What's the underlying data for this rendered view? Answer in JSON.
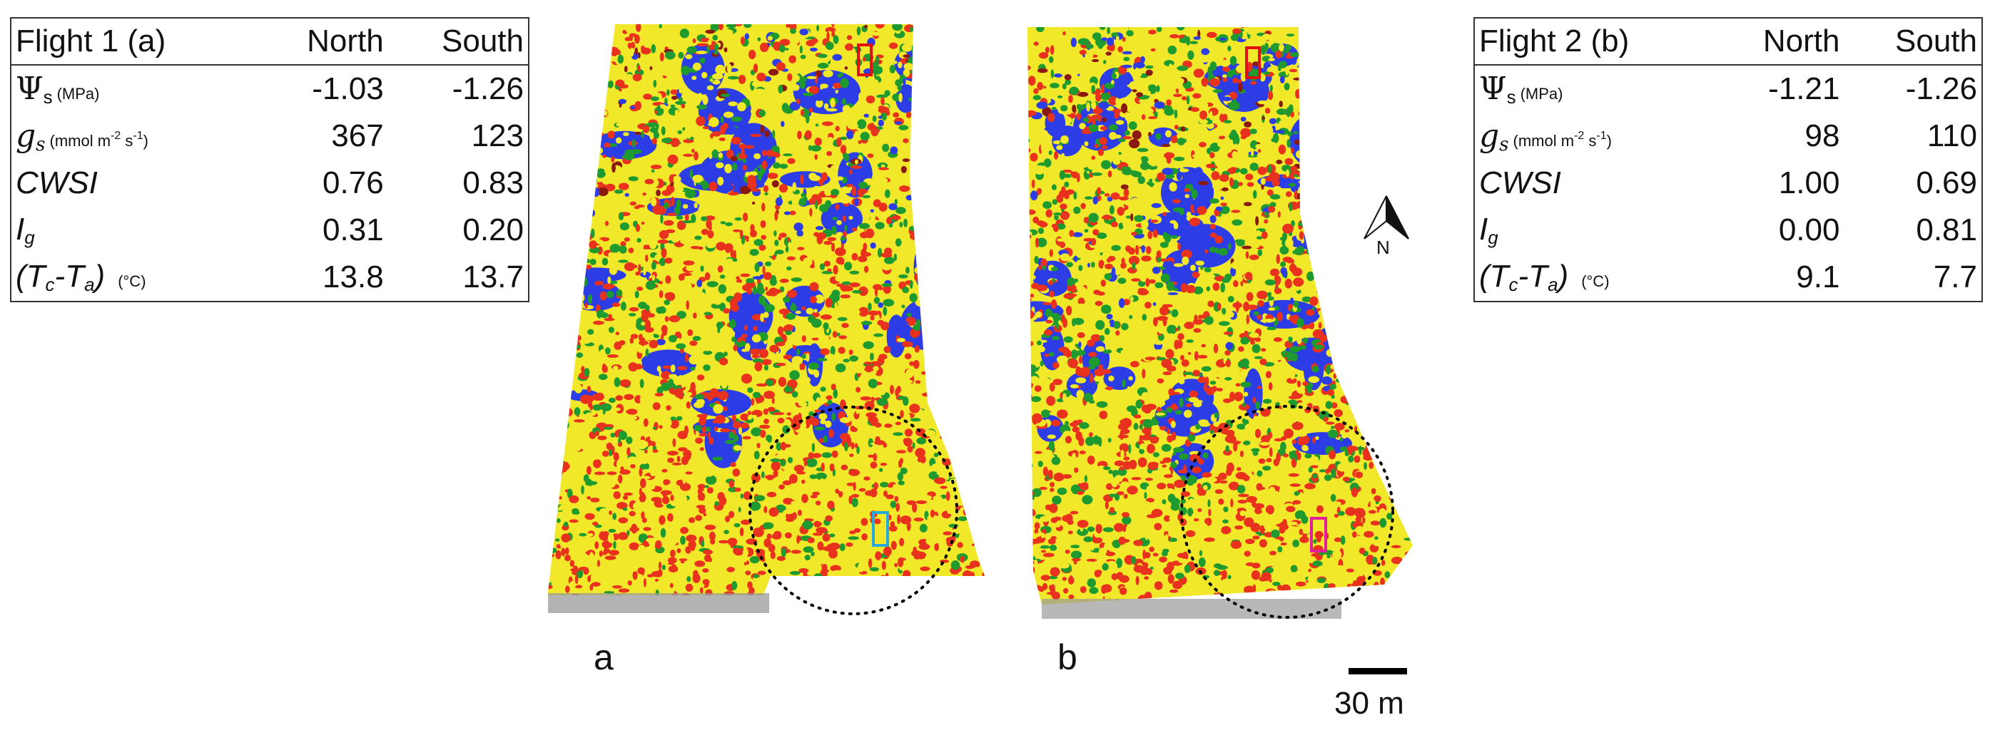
{
  "flight1": {
    "title": "Flight 1 (a)",
    "col_north": "North",
    "col_south": "South",
    "rows": [
      {
        "sym": "Ψ",
        "sub": "s",
        "unit": "(MPa)",
        "north": "-1.03",
        "south": "-1.26"
      },
      {
        "sym": "g",
        "sub": "s",
        "unit_pre": "(mmol m",
        "unit_sup1": "-2",
        "unit_mid": " s",
        "unit_sup2": "-1",
        "unit_post": ")",
        "north": "367",
        "south": "123"
      },
      {
        "sym": "CWSI",
        "north": "0.76",
        "south": "0.83"
      },
      {
        "sym": "I",
        "sub": "g",
        "north": "0.31",
        "south": "0.20"
      },
      {
        "sym_pre": "(T",
        "sub_c": "c",
        "sym_mid": "-T",
        "sub_a": "a",
        "sym_post": ")",
        "unit": "(°C)",
        "north": "13.8",
        "south": "13.7"
      }
    ]
  },
  "flight2": {
    "title": "Flight 2 (b)",
    "col_north": "North",
    "col_south": "South",
    "rows": [
      {
        "sym": "Ψ",
        "sub": "s",
        "unit": "(MPa)",
        "north": "-1.21",
        "south": "-1.26"
      },
      {
        "sym": "g",
        "sub": "s",
        "unit_pre": "(mmol m",
        "unit_sup1": "-2",
        "unit_mid": " s",
        "unit_sup2": "-1",
        "unit_post": ")",
        "north": "98",
        "south": "110"
      },
      {
        "sym": "CWSI",
        "north": "1.00",
        "south": "0.69"
      },
      {
        "sym": "I",
        "sub": "g",
        "north": "0.00",
        "south": "0.81"
      },
      {
        "sym_pre": "(T",
        "sub_c": "c",
        "sym_mid": "-T",
        "sub_a": "a",
        "sym_post": ")",
        "unit": "(°C)",
        "north": "9.1",
        "south": "7.7"
      }
    ]
  },
  "panels": {
    "a_label": "a",
    "b_label": "b"
  },
  "north_arrow": {
    "label": "N"
  },
  "scale_bar": {
    "label": "30 m"
  },
  "palette": {
    "red": "#e8321e",
    "yellow": "#f2e82a",
    "green": "#1f9a2e",
    "blue": "#2c3de6",
    "dark_red": "#8a1a10",
    "marker_red": "#e01010",
    "marker_blue": "#2aa8d8",
    "marker_pink": "#e0209a"
  }
}
